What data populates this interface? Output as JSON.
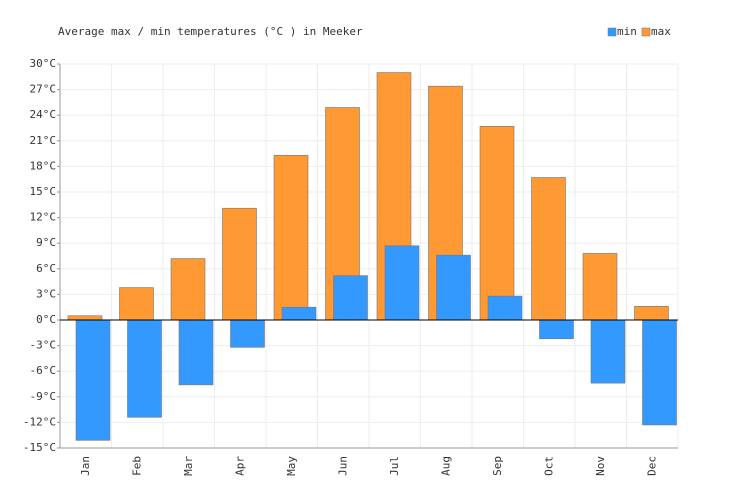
{
  "chart_data": {
    "type": "bar",
    "title": "Average max / min temperatures (°C ) in Meeker",
    "categories": [
      "Jan",
      "Feb",
      "Mar",
      "Apr",
      "May",
      "Jun",
      "Jul",
      "Aug",
      "Sep",
      "Oct",
      "Nov",
      "Dec"
    ],
    "series": [
      {
        "name": "min",
        "color": "#3399ff",
        "values": [
          -14.1,
          -11.4,
          -7.6,
          -3.2,
          1.5,
          5.2,
          8.7,
          7.6,
          2.8,
          -2.2,
          -7.4,
          -12.3
        ]
      },
      {
        "name": "max",
        "color": "#ff9933",
        "values": [
          0.5,
          3.8,
          7.2,
          13.1,
          19.3,
          24.9,
          29.0,
          27.4,
          22.7,
          16.7,
          7.8,
          1.6
        ]
      }
    ],
    "ylim": [
      -15,
      30
    ],
    "yticks": [
      {
        "value": -15,
        "label": "-15°C"
      },
      {
        "value": -12,
        "label": "-12°C"
      },
      {
        "value": -9,
        "label": "-9°C"
      },
      {
        "value": -6,
        "label": "-6°C"
      },
      {
        "value": -3,
        "label": "-3°C"
      },
      {
        "value": 0,
        "label": "0°C"
      },
      {
        "value": 3,
        "label": "3°C"
      },
      {
        "value": 6,
        "label": "6°C"
      },
      {
        "value": 9,
        "label": "9°C"
      },
      {
        "value": 12,
        "label": "12°C"
      },
      {
        "value": 15,
        "label": "15°C"
      },
      {
        "value": 18,
        "label": "18°C"
      },
      {
        "value": 21,
        "label": "21°C"
      },
      {
        "value": 24,
        "label": "24°C"
      },
      {
        "value": 27,
        "label": "27°C"
      },
      {
        "value": 30,
        "label": "30°C"
      }
    ],
    "grid": true,
    "legend": "top-right"
  }
}
